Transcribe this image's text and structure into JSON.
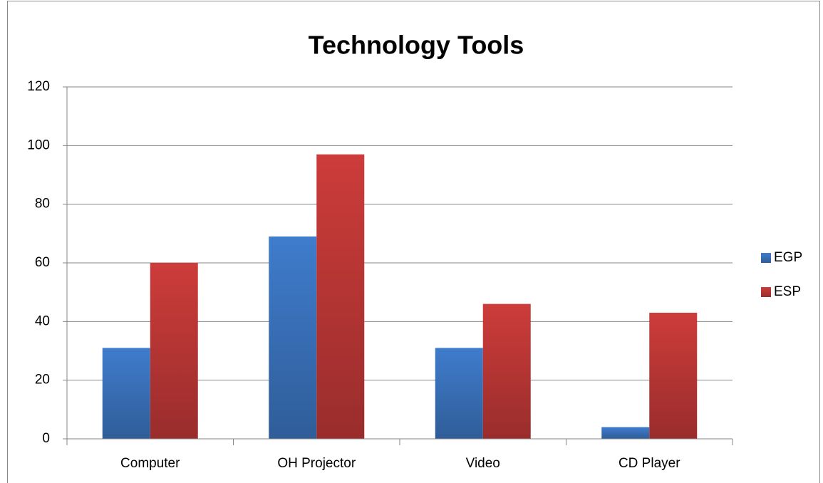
{
  "chart_data": {
    "type": "bar",
    "title": "Technology Tools",
    "categories": [
      "Computer",
      "OH Projector",
      "Video",
      "CD Player"
    ],
    "series": [
      {
        "name": "EGP",
        "color": "#3f7ccc",
        "values": [
          31,
          69,
          31,
          4
        ]
      },
      {
        "name": "ESP",
        "color": "#cc3c3a",
        "values": [
          60,
          97,
          46,
          43
        ]
      }
    ],
    "ylim": [
      0,
      120
    ],
    "yticks": [
      0,
      20,
      40,
      60,
      80,
      100,
      120
    ],
    "grid": true,
    "legend": "right"
  }
}
